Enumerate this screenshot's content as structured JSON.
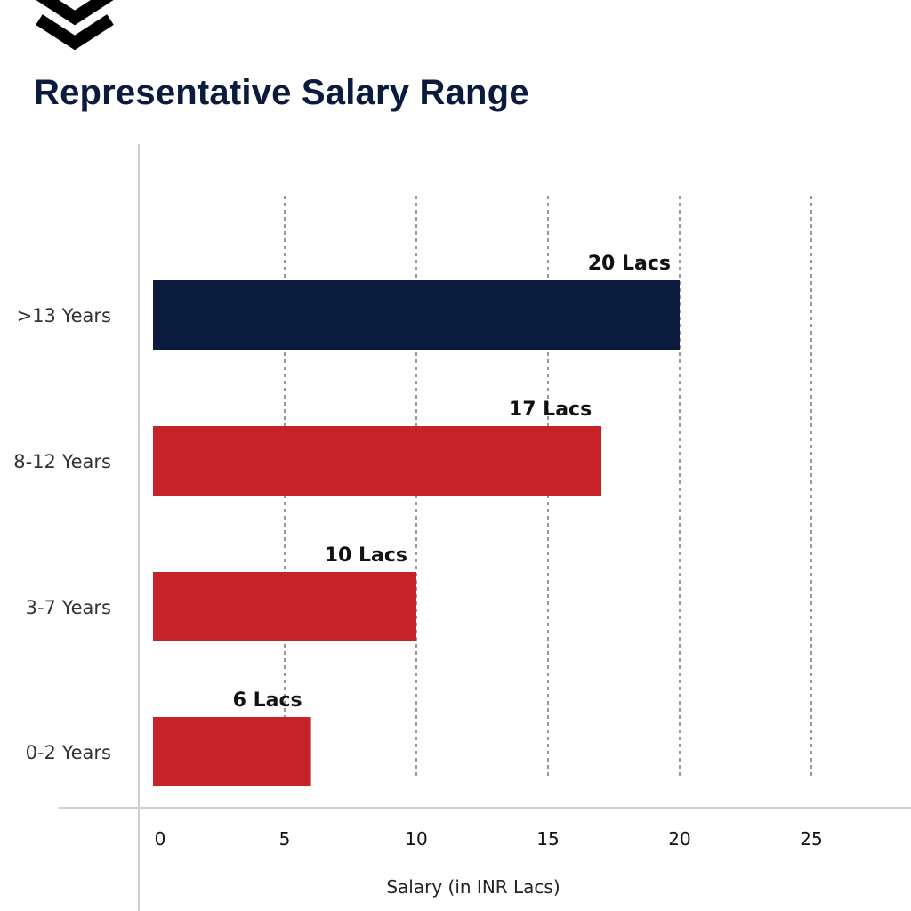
{
  "logo": {
    "icon": "double-chevron-down-icon",
    "color": "#000000"
  },
  "chart_data": {
    "type": "bar",
    "orientation": "horizontal",
    "title": "Representative Salary Range",
    "xlabel": "Salary (in INR Lacs)",
    "ylabel": "",
    "categories": [
      "0-2 Years",
      "3-7 Years",
      "8-12 Years",
      ">13 Years"
    ],
    "values": [
      6,
      10,
      17,
      20
    ],
    "data_labels": [
      "6 Lacs",
      "10 Lacs",
      "17 Lacs",
      "20 Lacs"
    ],
    "bar_colors": [
      "#c5222a",
      "#c5222a",
      "#c5222a",
      "#0b1b3d"
    ],
    "xlim": [
      0,
      25
    ],
    "xticks": [
      0,
      5,
      10,
      15,
      20,
      25
    ],
    "grid": "vertical-dashed",
    "legend": "none"
  }
}
